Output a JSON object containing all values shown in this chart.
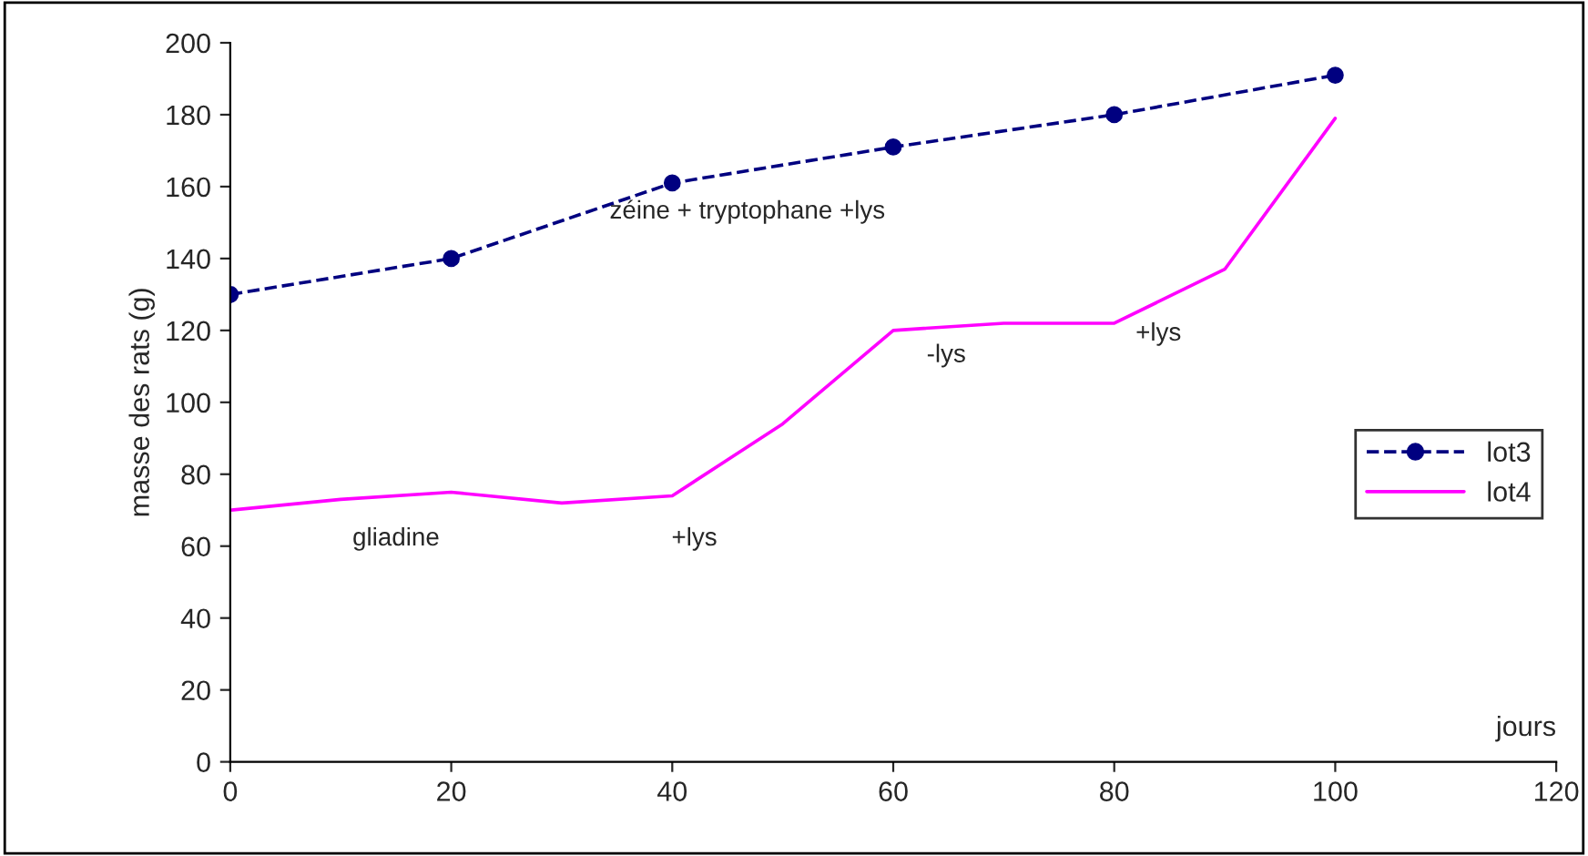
{
  "chart_data": {
    "type": "line",
    "ylabel": "masse des rats (g)",
    "xlabel": "jours",
    "xlim": [
      0,
      120
    ],
    "xticks": [
      0,
      20,
      40,
      60,
      80,
      100,
      120
    ],
    "ylim": [
      0,
      200
    ],
    "yticks": [
      0,
      20,
      40,
      60,
      80,
      100,
      120,
      140,
      160,
      180,
      200
    ],
    "grid": false,
    "legend": "right",
    "series": [
      {
        "name": "lot3",
        "color": "#000080",
        "marker": "circle",
        "line_style": "dashed",
        "x": [
          0,
          20,
          40,
          60,
          80,
          100
        ],
        "values": [
          130,
          140,
          161,
          171,
          180,
          191
        ]
      },
      {
        "name": "lot4",
        "color": "#ff00ff",
        "marker": "none",
        "line_style": "solid",
        "x": [
          0,
          10,
          20,
          30,
          40,
          50,
          60,
          70,
          80,
          90,
          100
        ],
        "values": [
          70,
          73,
          75,
          72,
          74,
          94,
          120,
          122,
          122,
          137,
          179
        ]
      }
    ],
    "annotations": [
      "zéine + tryptophane +lys",
      "gliadine",
      "+lys",
      "-lys",
      "+lys"
    ]
  }
}
